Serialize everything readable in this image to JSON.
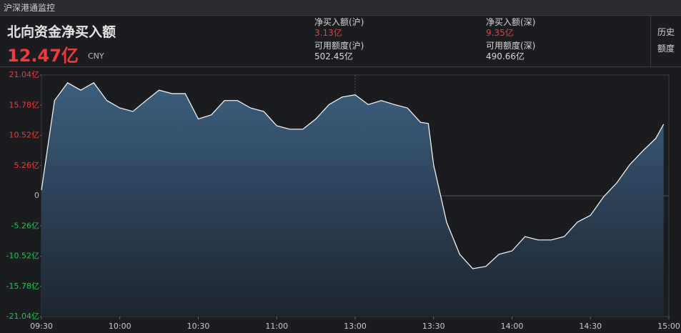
{
  "title_bar": "沪深港通监控",
  "header": {
    "title": "北向资金净买入额",
    "value": "12.47亿",
    "currency": "CNY",
    "stats": [
      {
        "label": "净买入额(沪)",
        "value": "3.13亿"
      },
      {
        "label": "可用额度(沪)",
        "value": "502.45亿"
      },
      {
        "label": "净买入额(深)",
        "value": "9.35亿"
      },
      {
        "label": "可用额度(深)",
        "value": "490.66亿"
      }
    ],
    "history_button": [
      "历史",
      "额度"
    ]
  },
  "chart_data": {
    "type": "line",
    "x": [
      0,
      5,
      10,
      15,
      20,
      25,
      30,
      35,
      40,
      45,
      50,
      55,
      60,
      65,
      70,
      75,
      80,
      85,
      90,
      95,
      100,
      105,
      110,
      115,
      120,
      125,
      130,
      135,
      140,
      145,
      148,
      150,
      155,
      160,
      165,
      170,
      175,
      180,
      185,
      190,
      195,
      200,
      205,
      210,
      215,
      220,
      225,
      230,
      235,
      238
    ],
    "series": [
      {
        "color": "#ffffff",
        "values": [
          1.0,
          16.6,
          19.7,
          18.4,
          19.7,
          16.6,
          15.3,
          14.7,
          16.6,
          18.4,
          17.8,
          17.8,
          13.4,
          14.1,
          16.6,
          16.6,
          15.3,
          14.7,
          12.2,
          11.6,
          11.6,
          13.4,
          15.9,
          17.2,
          17.6,
          15.9,
          16.6,
          15.9,
          15.3,
          12.8,
          12.6,
          5.4,
          -4.6,
          -10.2,
          -12.7,
          -12.3,
          -10.2,
          -9.6,
          -7.1,
          -7.7,
          -7.7,
          -7.1,
          -4.6,
          -3.4,
          -0.2,
          2.2,
          5.4,
          7.8,
          10.0,
          12.47
        ]
      }
    ],
    "xlim": [
      0,
      240
    ],
    "xticks": [
      {
        "value": 0,
        "label": "09:30"
      },
      {
        "value": 30,
        "label": "10:00"
      },
      {
        "value": 60,
        "label": "10:30"
      },
      {
        "value": 90,
        "label": "11:00"
      },
      {
        "value": 120,
        "label": "13:00"
      },
      {
        "value": 150,
        "label": "13:30"
      },
      {
        "value": 180,
        "label": "14:00"
      },
      {
        "value": 210,
        "label": "14:30"
      },
      {
        "value": 240,
        "label": "15:00"
      }
    ],
    "ylim": [
      -21.04,
      21.04
    ],
    "yticks": [
      {
        "value": 21.04,
        "label": "21.04亿"
      },
      {
        "value": 15.78,
        "label": "15.78亿"
      },
      {
        "value": 10.52,
        "label": "10.52亿"
      },
      {
        "value": 5.26,
        "label": "5.26亿"
      },
      0,
      {
        "value": -5.26,
        "label": "-5.26亿"
      },
      {
        "value": -10.52,
        "label": "-10.52亿"
      },
      {
        "value": -15.78,
        "label": "-15.78亿"
      },
      {
        "value": -21.04,
        "label": "-21.04亿"
      }
    ]
  }
}
